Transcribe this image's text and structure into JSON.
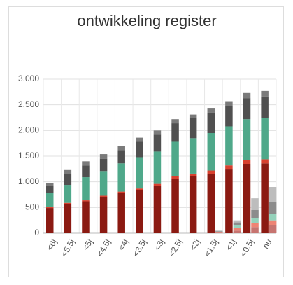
{
  "chart_data": {
    "type": "bar",
    "stacked": true,
    "title": "ontwikkeling register",
    "categories": [
      "<6j",
      "<5.5j",
      "<5j",
      "<4.5j",
      "<4j",
      "<3.5j",
      "<3j",
      "<2.5j",
      "<2j",
      "<1.5j",
      "<1j",
      "<0.5j",
      "nu"
    ],
    "ylim": [
      0,
      3000
    ],
    "yticks": [
      0,
      500,
      {
        "value": 1000,
        "label": "1.000"
      },
      {
        "value": 1500,
        "label": "1.500"
      },
      {
        "value": 2000,
        "label": "2.000"
      },
      {
        "value": 2500,
        "label": "2.500"
      },
      {
        "value": 3000,
        "label": "3.000"
      }
    ],
    "grid": true,
    "series": [
      {
        "stack": "main",
        "color": "#8b1a12",
        "values": [
          490,
          570,
          620,
          700,
          780,
          840,
          920,
          1060,
          1110,
          1150,
          1240,
          1350,
          1360
        ]
      },
      {
        "stack": "main",
        "color": "#d8402e",
        "values": [
          20,
          20,
          20,
          30,
          30,
          30,
          40,
          50,
          50,
          70,
          80,
          80,
          80
        ]
      },
      {
        "stack": "main",
        "color": "#4fa88a",
        "values": [
          280,
          350,
          450,
          480,
          550,
          610,
          630,
          670,
          690,
          730,
          760,
          790,
          800
        ]
      },
      {
        "stack": "main",
        "color": "#505050",
        "values": [
          125,
          210,
          230,
          240,
          260,
          300,
          330,
          360,
          390,
          400,
          390,
          410,
          420
        ]
      },
      {
        "stack": "main",
        "color": "#7a7a7a",
        "values": [
          65,
          80,
          80,
          90,
          80,
          80,
          80,
          80,
          70,
          90,
          100,
          100,
          110
        ]
      },
      {
        "stack": "second",
        "color": "#c77470",
        "values": [
          0,
          0,
          0,
          0,
          0,
          0,
          0,
          0,
          0,
          10,
          50,
          120,
          150
        ]
      },
      {
        "stack": "second",
        "color": "#ee8474",
        "values": [
          0,
          0,
          0,
          0,
          0,
          0,
          0,
          0,
          0,
          10,
          50,
          80,
          100
        ]
      },
      {
        "stack": "second",
        "color": "#95d2bb",
        "values": [
          0,
          0,
          0,
          0,
          0,
          0,
          0,
          0,
          0,
          10,
          50,
          90,
          120
        ]
      },
      {
        "stack": "second",
        "color": "#8c8c8c",
        "values": [
          0,
          0,
          0,
          0,
          0,
          0,
          0,
          0,
          0,
          10,
          60,
          160,
          230
        ]
      },
      {
        "stack": "second",
        "color": "#bdbdbd",
        "values": [
          0,
          0,
          0,
          0,
          0,
          0,
          0,
          0,
          0,
          10,
          40,
          230,
          300
        ]
      }
    ]
  }
}
